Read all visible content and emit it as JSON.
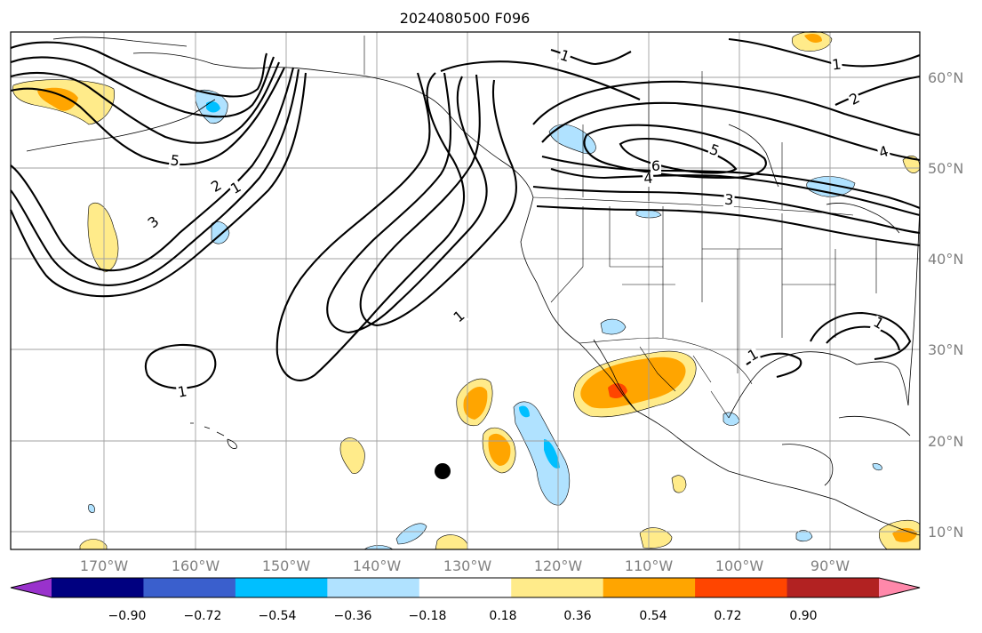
{
  "title": "2024080500 F096",
  "lon_labels": [
    "170°W",
    "160°W",
    "150°W",
    "140°W",
    "130°W",
    "120°W",
    "110°W",
    "100°W",
    "90°W"
  ],
  "lat_labels": [
    "60°N",
    "50°N",
    "40°N",
    "30°N",
    "20°N",
    "10°N"
  ],
  "contour_labels": [
    {
      "value": "1",
      "id": "1a"
    },
    {
      "value": "1",
      "id": "1b"
    },
    {
      "value": "1",
      "id": "1c"
    },
    {
      "value": "1",
      "id": "1d"
    },
    {
      "value": "1",
      "id": "1e"
    },
    {
      "value": "1",
      "id": "1f"
    },
    {
      "value": "1",
      "id": "1g"
    },
    {
      "value": "2",
      "id": "2a"
    },
    {
      "value": "2",
      "id": "2b"
    },
    {
      "value": "3",
      "id": "3a"
    },
    {
      "value": "3",
      "id": "3b"
    },
    {
      "value": "4",
      "id": "4a"
    },
    {
      "value": "4",
      "id": "4b"
    },
    {
      "value": "5",
      "id": "5a"
    },
    {
      "value": "5",
      "id": "5b"
    },
    {
      "value": "6",
      "id": "6a"
    }
  ],
  "colorbar": {
    "ticks": [
      "−0.90",
      "−0.72",
      "−0.54",
      "−0.36",
      "−0.18",
      "0.18",
      "0.36",
      "0.54",
      "0.72",
      "0.90"
    ],
    "colors": [
      "#9932cc",
      "#000080",
      "#3a5fcd",
      "#00bfff",
      "#b0e2ff",
      "#ffffff",
      "#ffeb8a",
      "#ffa500",
      "#ff4500",
      "#b22222",
      "#ff88aa"
    ]
  },
  "marker": {
    "label": "storm-center-dot",
    "lon": -133,
    "lat": 16.7
  }
}
